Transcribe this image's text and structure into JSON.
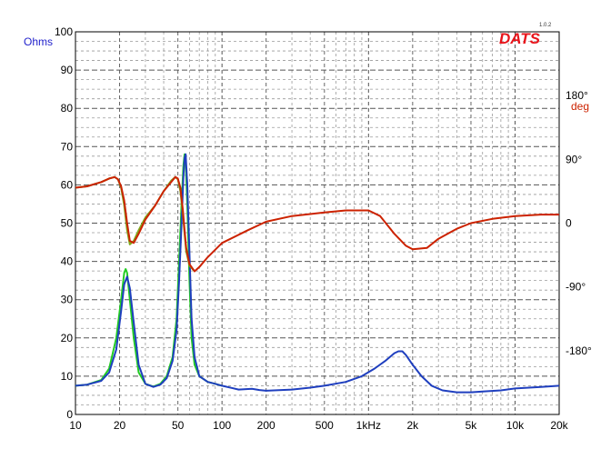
{
  "chart_data": {
    "type": "line",
    "title": "",
    "xlabel": "",
    "ylabel": "Ohms",
    "y2label": "deg",
    "x_scale": "log",
    "xlim": [
      10,
      20000
    ],
    "ylim": [
      0,
      100
    ],
    "y2lim": [
      -270,
      270
    ],
    "grid": true,
    "x_ticks": [
      {
        "v": 10,
        "label": "10"
      },
      {
        "v": 20,
        "label": "20"
      },
      {
        "v": 50,
        "label": "50"
      },
      {
        "v": 100,
        "label": "100"
      },
      {
        "v": 200,
        "label": "200"
      },
      {
        "v": 500,
        "label": "500"
      },
      {
        "v": 1000,
        "label": "1kHz"
      },
      {
        "v": 2000,
        "label": "2k"
      },
      {
        "v": 5000,
        "label": "5k"
      },
      {
        "v": 10000,
        "label": "10k"
      },
      {
        "v": 20000,
        "label": "20k"
      }
    ],
    "y_ticks": [
      0,
      10,
      20,
      30,
      40,
      50,
      60,
      70,
      80,
      90,
      100
    ],
    "y2_ticks": [
      {
        "v": 180,
        "label": "180°"
      },
      {
        "v": 90,
        "label": "90°"
      },
      {
        "v": 0,
        "label": "0"
      },
      {
        "v": -90,
        "label": "-90°"
      },
      {
        "v": -180,
        "label": "-180°"
      }
    ],
    "series": [
      {
        "name": "",
        "axis": "left",
        "color": "#22cc22",
        "points": [
          [
            10,
            7.5
          ],
          [
            12,
            7.8
          ],
          [
            15,
            9
          ],
          [
            17,
            12
          ],
          [
            19,
            20
          ],
          [
            20.5,
            30
          ],
          [
            21.5,
            37
          ],
          [
            22,
            38
          ],
          [
            22.5,
            37
          ],
          [
            23.5,
            30
          ],
          [
            25,
            20
          ],
          [
            27,
            11
          ],
          [
            30,
            8
          ],
          [
            34,
            7.3
          ],
          [
            38,
            8
          ],
          [
            42,
            10
          ],
          [
            46,
            15
          ],
          [
            49,
            25
          ],
          [
            51,
            40
          ],
          [
            53,
            55
          ],
          [
            54.5,
            65
          ],
          [
            55.5,
            68
          ],
          [
            56.5,
            66
          ],
          [
            58,
            55
          ],
          [
            60,
            35
          ],
          [
            62,
            20
          ],
          [
            65,
            13
          ],
          [
            70,
            10
          ],
          [
            80,
            8.5
          ],
          [
            90,
            8
          ],
          [
            100,
            7.5
          ]
        ]
      },
      {
        "name": "",
        "axis": "left",
        "color": "#1f3fbf",
        "points": [
          [
            10,
            7.5
          ],
          [
            12,
            7.8
          ],
          [
            15,
            8.8
          ],
          [
            17,
            11
          ],
          [
            19,
            17
          ],
          [
            20.5,
            27
          ],
          [
            21.5,
            34
          ],
          [
            22.5,
            36
          ],
          [
            23.5,
            33
          ],
          [
            25,
            24
          ],
          [
            27,
            13
          ],
          [
            30,
            8
          ],
          [
            34,
            7.2
          ],
          [
            38,
            7.8
          ],
          [
            42,
            9.5
          ],
          [
            46,
            14
          ],
          [
            49,
            22
          ],
          [
            51,
            35
          ],
          [
            53,
            50
          ],
          [
            54.5,
            62
          ],
          [
            55.5,
            67
          ],
          [
            56.5,
            68
          ],
          [
            58,
            60
          ],
          [
            60,
            42
          ],
          [
            62,
            25
          ],
          [
            65,
            15
          ],
          [
            70,
            10
          ],
          [
            80,
            8.5
          ],
          [
            90,
            8
          ],
          [
            100,
            7.5
          ],
          [
            130,
            6.5
          ],
          [
            160,
            6.7
          ],
          [
            180,
            6.4
          ],
          [
            200,
            6.2
          ],
          [
            300,
            6.5
          ],
          [
            400,
            7
          ],
          [
            500,
            7.5
          ],
          [
            700,
            8.5
          ],
          [
            900,
            10
          ],
          [
            1100,
            12
          ],
          [
            1300,
            14
          ],
          [
            1500,
            16
          ],
          [
            1600,
            16.5
          ],
          [
            1700,
            16.5
          ],
          [
            1800,
            15.5
          ],
          [
            2000,
            13
          ],
          [
            2300,
            10
          ],
          [
            2700,
            7.5
          ],
          [
            3200,
            6.3
          ],
          [
            4000,
            5.8
          ],
          [
            5000,
            5.8
          ],
          [
            6000,
            6
          ],
          [
            8000,
            6.3
          ],
          [
            10000,
            6.8
          ],
          [
            15000,
            7.2
          ],
          [
            20000,
            7.5
          ]
        ]
      },
      {
        "name": "",
        "axis": "right",
        "color": "#7fa81a",
        "points": [
          [
            10,
            50
          ],
          [
            12,
            52
          ],
          [
            15,
            58
          ],
          [
            17,
            63
          ],
          [
            18.5,
            65
          ],
          [
            19.5,
            62
          ],
          [
            20.5,
            50
          ],
          [
            21.5,
            25
          ],
          [
            22.5,
            -10
          ],
          [
            23.5,
            -30
          ],
          [
            25,
            -25
          ],
          [
            27,
            -10
          ],
          [
            30,
            8
          ],
          [
            35,
            25
          ],
          [
            40,
            45
          ],
          [
            45,
            60
          ],
          [
            48,
            65
          ],
          [
            50,
            62
          ],
          [
            52,
            45
          ],
          [
            54,
            15
          ],
          [
            55.5,
            -15
          ],
          [
            57,
            -40
          ],
          [
            60,
            -60
          ],
          [
            65,
            -68
          ]
        ]
      },
      {
        "name": "",
        "axis": "right",
        "color": "#cc2200",
        "points": [
          [
            10,
            50
          ],
          [
            12,
            52
          ],
          [
            15,
            58
          ],
          [
            17,
            63
          ],
          [
            18.5,
            65
          ],
          [
            19.5,
            62
          ],
          [
            20.5,
            52
          ],
          [
            21.5,
            32
          ],
          [
            22.5,
            0
          ],
          [
            23.5,
            -25
          ],
          [
            25,
            -28
          ],
          [
            27,
            -15
          ],
          [
            30,
            5
          ],
          [
            35,
            25
          ],
          [
            40,
            45
          ],
          [
            45,
            58
          ],
          [
            48,
            65
          ],
          [
            50,
            63
          ],
          [
            52,
            50
          ],
          [
            54,
            20
          ],
          [
            55.5,
            -10
          ],
          [
            57,
            -35
          ],
          [
            60,
            -58
          ],
          [
            65,
            -68
          ],
          [
            70,
            -62
          ],
          [
            80,
            -48
          ],
          [
            100,
            -28
          ],
          [
            150,
            -10
          ],
          [
            200,
            2
          ],
          [
            300,
            10
          ],
          [
            500,
            15
          ],
          [
            700,
            18
          ],
          [
            1000,
            18
          ],
          [
            1200,
            10
          ],
          [
            1500,
            -15
          ],
          [
            1800,
            -32
          ],
          [
            2000,
            -37
          ],
          [
            2500,
            -35
          ],
          [
            3000,
            -22
          ],
          [
            4000,
            -8
          ],
          [
            5000,
            0
          ],
          [
            7000,
            6
          ],
          [
            10000,
            10
          ],
          [
            15000,
            12
          ],
          [
            20000,
            12
          ]
        ]
      }
    ]
  },
  "logo": {
    "text": "DATS",
    "version": "1.0.2",
    "color": "#e8141b"
  }
}
